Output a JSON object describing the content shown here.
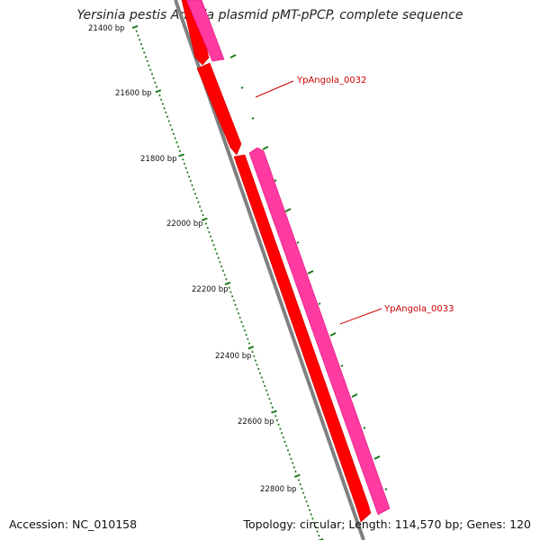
{
  "header": {
    "title": "Yersinia pestis Angola plasmid pMT-pPCP, complete sequence"
  },
  "footer": {
    "accession": "Accession: NC_010158",
    "summary": "Topology: circular; Length: 114,570 bp; Genes: 120"
  },
  "scale": {
    "tick_labels": [
      "21400 bp",
      "21600 bp",
      "21800 bp",
      "22000 bp",
      "22200 bp",
      "22400 bp",
      "22600 bp",
      "22800 bp"
    ]
  },
  "genes": [
    {
      "name": "YpAngola_0032",
      "color": "#cc0000"
    },
    {
      "name": "YpAngola_0033",
      "color": "#cc0000"
    }
  ],
  "colors": {
    "backbone": "#808080",
    "forward_gene": "#ff0000",
    "reverse_gene": "#ff3aa0",
    "tick": "#1a7a1a",
    "label_line": "#cc0000"
  }
}
